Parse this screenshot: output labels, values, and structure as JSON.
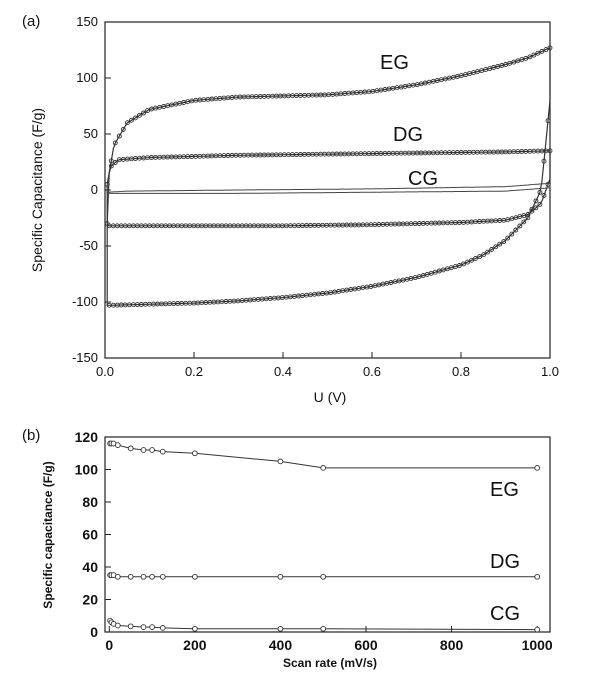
{
  "chart_data": [
    {
      "panel": "(a)",
      "type": "line",
      "xlabel": "U (V)",
      "ylabel": "Specific Capacitance (F/g)",
      "xlim": [
        0.0,
        1.0
      ],
      "ylim": [
        -150,
        150
      ],
      "xticks": [
        "0.0",
        "0.2",
        "0.4",
        "0.6",
        "0.8",
        "1.0"
      ],
      "yticks": [
        "150",
        "100",
        "50",
        "0",
        "-50",
        "-100",
        "-150"
      ],
      "legend": "none",
      "grid": false,
      "series": [
        {
          "name": "EG",
          "color": "#333333",
          "upper": [
            [
              0.005,
              5
            ],
            [
              0.02,
              40
            ],
            [
              0.05,
              60
            ],
            [
              0.1,
              72
            ],
            [
              0.2,
              80
            ],
            [
              0.3,
              83
            ],
            [
              0.4,
              84
            ],
            [
              0.5,
              85
            ],
            [
              0.6,
              88
            ],
            [
              0.7,
              94
            ],
            [
              0.8,
              102
            ],
            [
              0.9,
              112
            ],
            [
              0.95,
              118
            ],
            [
              1.0,
              127
            ]
          ],
          "lower": [
            [
              0.005,
              -103
            ],
            [
              0.1,
              -102
            ],
            [
              0.2,
              -101
            ],
            [
              0.3,
              -99
            ],
            [
              0.4,
              -96
            ],
            [
              0.5,
              -92
            ],
            [
              0.6,
              -86
            ],
            [
              0.7,
              -78
            ],
            [
              0.8,
              -67
            ],
            [
              0.85,
              -58
            ],
            [
              0.9,
              -45
            ],
            [
              0.95,
              -25
            ],
            [
              0.98,
              0
            ],
            [
              1.0,
              80
            ]
          ]
        },
        {
          "name": "DG",
          "color": "#333333",
          "upper": [
            [
              0.005,
              -30
            ],
            [
              0.01,
              20
            ],
            [
              0.03,
              27
            ],
            [
              0.1,
              29
            ],
            [
              0.3,
              31
            ],
            [
              0.5,
              32
            ],
            [
              0.7,
              33
            ],
            [
              0.9,
              34
            ],
            [
              1.0,
              35
            ]
          ],
          "lower": [
            [
              0.005,
              -32
            ],
            [
              0.2,
              -32
            ],
            [
              0.4,
              -32
            ],
            [
              0.6,
              -31
            ],
            [
              0.8,
              -29
            ],
            [
              0.9,
              -27
            ],
            [
              0.95,
              -22
            ],
            [
              0.98,
              -12
            ],
            [
              1.0,
              10
            ]
          ]
        },
        {
          "name": "CG",
          "color": "#444444",
          "upper": [
            [
              0.005,
              -2
            ],
            [
              0.05,
              -1
            ],
            [
              0.3,
              0
            ],
            [
              0.6,
              1
            ],
            [
              0.9,
              3
            ],
            [
              1.0,
              6
            ]
          ],
          "lower": [
            [
              0.005,
              -3
            ],
            [
              0.3,
              -3
            ],
            [
              0.6,
              -2
            ],
            [
              0.9,
              -1
            ],
            [
              1.0,
              2
            ]
          ]
        }
      ],
      "annotations": [
        "EG",
        "DG",
        "CG"
      ]
    },
    {
      "panel": "(b)",
      "type": "line",
      "xlabel": "Scan rate (mV/s)",
      "ylabel": "Specific capacitance (F/g)",
      "xlim": [
        0,
        1000
      ],
      "ylim": [
        0,
        120
      ],
      "xticks": [
        "0",
        "200",
        "400",
        "600",
        "800",
        "1000"
      ],
      "yticks": [
        "120",
        "100",
        "80",
        "60",
        "40",
        "20",
        "0"
      ],
      "legend": "none",
      "grid": false,
      "series": [
        {
          "name": "EG",
          "x": [
            2,
            5,
            10,
            20,
            50,
            80,
            100,
            125,
            200,
            400,
            500,
            1000
          ],
          "values": [
            116,
            116,
            116,
            115,
            113,
            112,
            112,
            111,
            110,
            105,
            101,
            101
          ]
        },
        {
          "name": "DG",
          "x": [
            2,
            5,
            10,
            20,
            50,
            80,
            100,
            125,
            200,
            400,
            500,
            1000
          ],
          "values": [
            35,
            35,
            35,
            34,
            34,
            34,
            34,
            34,
            34,
            34,
            34,
            34
          ]
        },
        {
          "name": "CG",
          "x": [
            2,
            5,
            10,
            20,
            50,
            80,
            100,
            125,
            200,
            400,
            500,
            1000
          ],
          "values": [
            7,
            6,
            5,
            4,
            3.5,
            3,
            3,
            2.5,
            2,
            2,
            2,
            1.5
          ]
        }
      ],
      "annotations": [
        "EG",
        "DG",
        "CG"
      ]
    }
  ]
}
